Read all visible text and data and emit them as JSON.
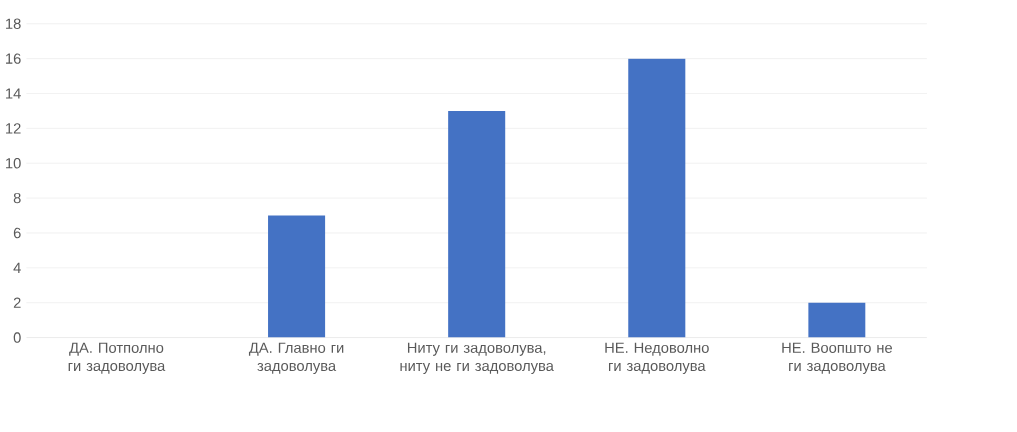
{
  "chart_data": {
    "type": "bar",
    "categories": [
      "ДА. Потполно ги задоволува",
      "ДА. Главно ги задоволува",
      "Ниту ги задоволува, ниту не ги задоволува",
      "НЕ. Недоволно ги задоволува",
      "НЕ. Воопшто не ги задоволува"
    ],
    "values": [
      0,
      7,
      13,
      16,
      2
    ],
    "color": "#4472c4",
    "ylim": [
      0,
      18
    ],
    "yticks": [
      0,
      2,
      4,
      6,
      8,
      10,
      12,
      14,
      16,
      18
    ],
    "grid": "y"
  }
}
